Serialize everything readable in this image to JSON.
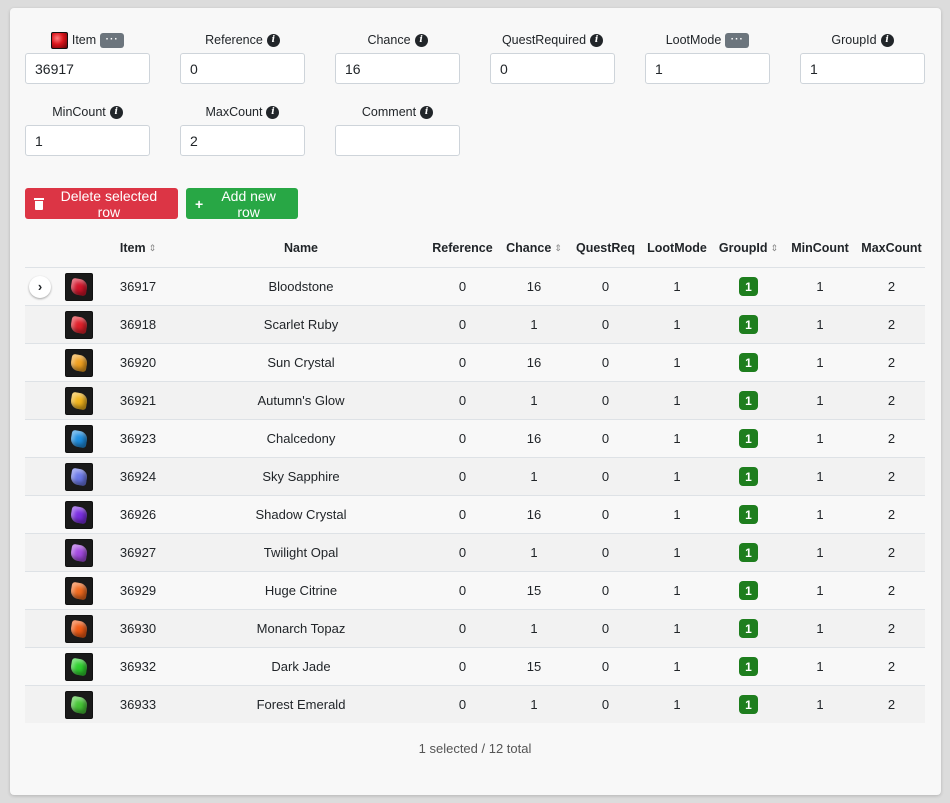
{
  "form": {
    "item": {
      "label": "Item",
      "value": "36917",
      "more": "···"
    },
    "reference": {
      "label": "Reference",
      "value": "0"
    },
    "chance": {
      "label": "Chance",
      "value": "16"
    },
    "quest_required": {
      "label": "QuestRequired",
      "value": "0"
    },
    "loot_mode": {
      "label": "LootMode",
      "value": "1",
      "more": "···"
    },
    "group_id": {
      "label": "GroupId",
      "value": "1"
    },
    "min_count": {
      "label": "MinCount",
      "value": "1"
    },
    "max_count": {
      "label": "MaxCount",
      "value": "2"
    },
    "comment": {
      "label": "Comment",
      "value": ""
    }
  },
  "toolbar": {
    "delete_label": "Delete selected row",
    "add_label": "Add new row",
    "add_icon": "+"
  },
  "table": {
    "headers": {
      "item": "Item",
      "name": "Name",
      "reference": "Reference",
      "chance": "Chance",
      "quest": "QuestReq",
      "loot": "LootMode",
      "group": "GroupId",
      "min": "MinCount",
      "max": "MaxCount"
    },
    "rows": [
      {
        "item": "36917",
        "name": "Bloodstone",
        "reference": "0",
        "chance": "16",
        "quest": "0",
        "loot": "1",
        "group": "1",
        "min": "1",
        "max": "2",
        "gem_color": "#d3142a"
      },
      {
        "item": "36918",
        "name": "Scarlet Ruby",
        "reference": "0",
        "chance": "1",
        "quest": "0",
        "loot": "1",
        "group": "1",
        "min": "1",
        "max": "2",
        "gem_color": "#e0202a"
      },
      {
        "item": "36920",
        "name": "Sun Crystal",
        "reference": "0",
        "chance": "16",
        "quest": "0",
        "loot": "1",
        "group": "1",
        "min": "1",
        "max": "2",
        "gem_color": "#f0a020"
      },
      {
        "item": "36921",
        "name": "Autumn's Glow",
        "reference": "0",
        "chance": "1",
        "quest": "0",
        "loot": "1",
        "group": "1",
        "min": "1",
        "max": "2",
        "gem_color": "#f2b41c"
      },
      {
        "item": "36923",
        "name": "Chalcedony",
        "reference": "0",
        "chance": "16",
        "quest": "0",
        "loot": "1",
        "group": "1",
        "min": "1",
        "max": "2",
        "gem_color": "#1e8ee0"
      },
      {
        "item": "36924",
        "name": "Sky Sapphire",
        "reference": "0",
        "chance": "1",
        "quest": "0",
        "loot": "1",
        "group": "1",
        "min": "1",
        "max": "2",
        "gem_color": "#6a78e8"
      },
      {
        "item": "36926",
        "name": "Shadow Crystal",
        "reference": "0",
        "chance": "16",
        "quest": "0",
        "loot": "1",
        "group": "1",
        "min": "1",
        "max": "2",
        "gem_color": "#7a2ee0"
      },
      {
        "item": "36927",
        "name": "Twilight Opal",
        "reference": "0",
        "chance": "1",
        "quest": "0",
        "loot": "1",
        "group": "1",
        "min": "1",
        "max": "2",
        "gem_color": "#a44ae0"
      },
      {
        "item": "36929",
        "name": "Huge Citrine",
        "reference": "0",
        "chance": "15",
        "quest": "0",
        "loot": "1",
        "group": "1",
        "min": "1",
        "max": "2",
        "gem_color": "#f06a1e"
      },
      {
        "item": "36930",
        "name": "Monarch Topaz",
        "reference": "0",
        "chance": "1",
        "quest": "0",
        "loot": "1",
        "group": "1",
        "min": "1",
        "max": "2",
        "gem_color": "#f05a14"
      },
      {
        "item": "36932",
        "name": "Dark Jade",
        "reference": "0",
        "chance": "15",
        "quest": "0",
        "loot": "1",
        "group": "1",
        "min": "1",
        "max": "2",
        "gem_color": "#2ed02e"
      },
      {
        "item": "36933",
        "name": "Forest Emerald",
        "reference": "0",
        "chance": "1",
        "quest": "0",
        "loot": "1",
        "group": "1",
        "min": "1",
        "max": "2",
        "gem_color": "#46c436"
      }
    ]
  },
  "status": "1 selected / 12 total",
  "colors": {
    "danger": "#dc3545",
    "success": "#28a745",
    "group_badge": "#1e7e1e"
  }
}
